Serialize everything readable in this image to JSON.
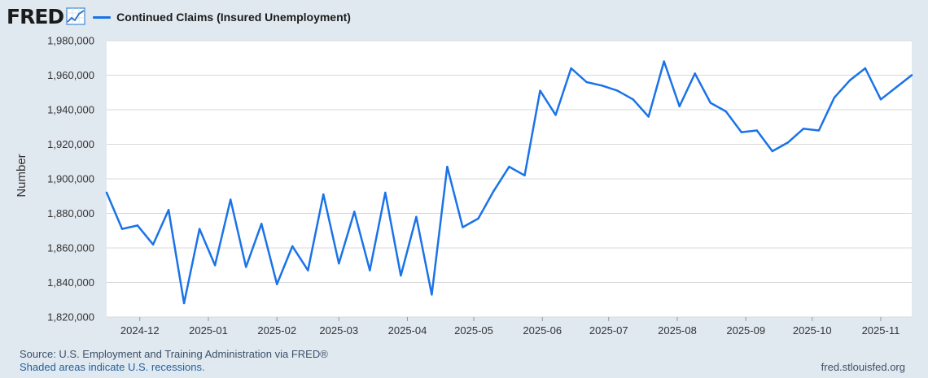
{
  "header": {
    "logo": "FRED",
    "legend_label": "Continued Claims (Insured Unemployment)"
  },
  "footer": {
    "source": "Source: U.S. Employment and Training Administration via FRED®",
    "recession_note": "Shaded areas indicate U.S. recessions.",
    "site": "fred.stlouisfed.org"
  },
  "colors": {
    "background": "#e1e9f0",
    "plot_background": "#ffffff",
    "series": "#1a73e8",
    "grid": "#d9d9d9"
  },
  "chart_data": {
    "type": "line",
    "ylabel": "Number",
    "xlabel": "",
    "ylim": [
      1820000,
      1980000
    ],
    "xlim": [
      "2024-11-16",
      "2025-11-15"
    ],
    "grid": true,
    "yticks": [
      1820000,
      1840000,
      1860000,
      1880000,
      1900000,
      1920000,
      1940000,
      1960000,
      1980000
    ],
    "ytick_labels": [
      "1,820,000",
      "1,840,000",
      "1,860,000",
      "1,880,000",
      "1,900,000",
      "1,920,000",
      "1,940,000",
      "1,960,000",
      "1,980,000"
    ],
    "xticks": [
      "2024-12-01",
      "2025-01-01",
      "2025-02-01",
      "2025-03-01",
      "2025-04-01",
      "2025-05-01",
      "2025-06-01",
      "2025-07-01",
      "2025-08-01",
      "2025-09-01",
      "2025-10-01",
      "2025-11-01"
    ],
    "xtick_labels": [
      "2024-12",
      "2025-01",
      "2025-02",
      "2025-03",
      "2025-04",
      "2025-05",
      "2025-06",
      "2025-07",
      "2025-08",
      "2025-09",
      "2025-10",
      "2025-11"
    ],
    "series": [
      {
        "name": "Continued Claims (Insured Unemployment)",
        "x": [
          "2024-11-16",
          "2024-11-23",
          "2024-11-30",
          "2024-12-07",
          "2024-12-14",
          "2024-12-21",
          "2024-12-28",
          "2025-01-04",
          "2025-01-11",
          "2025-01-18",
          "2025-01-25",
          "2025-02-01",
          "2025-02-08",
          "2025-02-15",
          "2025-02-22",
          "2025-03-01",
          "2025-03-08",
          "2025-03-15",
          "2025-03-22",
          "2025-03-29",
          "2025-04-05",
          "2025-04-12",
          "2025-04-19",
          "2025-04-26",
          "2025-05-03",
          "2025-05-10",
          "2025-05-17",
          "2025-05-24",
          "2025-05-31",
          "2025-06-07",
          "2025-06-14",
          "2025-06-21",
          "2025-06-28",
          "2025-07-05",
          "2025-07-12",
          "2025-07-19",
          "2025-07-26",
          "2025-08-02",
          "2025-08-09",
          "2025-08-16",
          "2025-08-23",
          "2025-08-30",
          "2025-09-06",
          "2025-09-13",
          "2025-09-20",
          "2025-09-27",
          "2025-10-04",
          "2025-10-11",
          "2025-10-18",
          "2025-10-25",
          "2025-11-01",
          "2025-11-08",
          "2025-11-15"
        ],
        "values": [
          1892000,
          1871000,
          1873000,
          1862000,
          1882000,
          1828000,
          1871000,
          1850000,
          1888000,
          1849000,
          1874000,
          1839000,
          1861000,
          1847000,
          1891000,
          1851000,
          1881000,
          1847000,
          1892000,
          1844000,
          1878000,
          1833000,
          1907000,
          1872000,
          1877000,
          1893000,
          1907000,
          1902000,
          1951000,
          1937000,
          1964000,
          1956000,
          1954000,
          1951000,
          1946000,
          1936000,
          1968000,
          1942000,
          1961000,
          1944000,
          1939000,
          1927000,
          1928000,
          1916000,
          1921000,
          1929000,
          1928000,
          1947000,
          1957000,
          1964000,
          1946000,
          1953000,
          1960000
        ]
      }
    ]
  }
}
